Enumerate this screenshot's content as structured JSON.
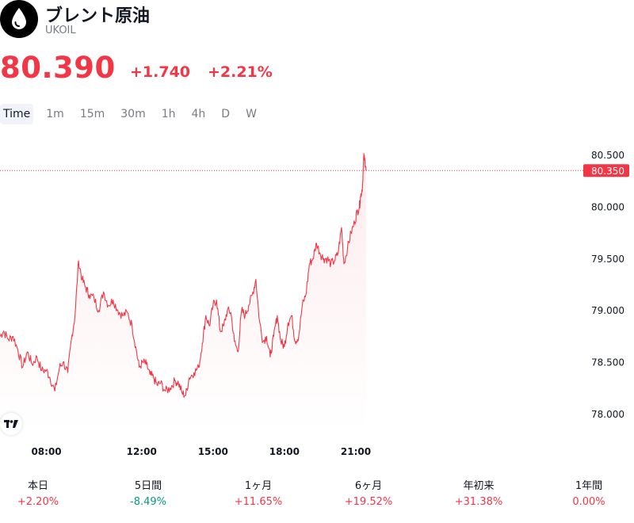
{
  "header": {
    "title": "ブレント原油",
    "ticker": "UKOIL",
    "icon": "oil-drop-icon"
  },
  "quote": {
    "price": "80.390",
    "change": "+1.740",
    "change_pct": "+2.21%"
  },
  "tabs": [
    {
      "label": "Time",
      "active": true
    },
    {
      "label": "1m",
      "active": false
    },
    {
      "label": "15m",
      "active": false
    },
    {
      "label": "30m",
      "active": false
    },
    {
      "label": "1h",
      "active": false
    },
    {
      "label": "4h",
      "active": false
    },
    {
      "label": "D",
      "active": false
    },
    {
      "label": "W",
      "active": false
    }
  ],
  "chart_data": {
    "type": "area",
    "ylim": [
      77.85,
      80.62
    ],
    "y_ticks": [
      "80.500",
      "80.000",
      "79.500",
      "79.000",
      "78.500",
      "78.000"
    ],
    "y_tick_values": [
      80.5,
      80.0,
      79.5,
      79.0,
      78.5,
      78.0
    ],
    "x_ticks": [
      "08:00",
      "12:00",
      "15:00",
      "18:00",
      "21:00"
    ],
    "x_tick_hours": [
      8,
      12,
      15,
      18,
      21
    ],
    "x_range_hours": [
      6.05,
      21.2
    ],
    "last_price_label": "80.350",
    "last_price": 80.35,
    "line_color": "#f23645",
    "series": [
      {
        "points": [
          [
            6.05,
            78.75
          ],
          [
            6.2,
            78.8
          ],
          [
            6.4,
            78.72
          ],
          [
            6.6,
            78.75
          ],
          [
            6.8,
            78.62
          ],
          [
            7.0,
            78.45
          ],
          [
            7.2,
            78.6
          ],
          [
            7.4,
            78.48
          ],
          [
            7.6,
            78.55
          ],
          [
            7.8,
            78.42
          ],
          [
            8.0,
            78.42
          ],
          [
            8.15,
            78.35
          ],
          [
            8.35,
            78.22
          ],
          [
            8.55,
            78.45
          ],
          [
            8.7,
            78.5
          ],
          [
            8.9,
            78.4
          ],
          [
            9.05,
            78.72
          ],
          [
            9.2,
            78.95
          ],
          [
            9.35,
            79.48
          ],
          [
            9.5,
            79.3
          ],
          [
            9.65,
            79.22
          ],
          [
            9.8,
            79.15
          ],
          [
            10.0,
            79.12
          ],
          [
            10.2,
            79.0
          ],
          [
            10.4,
            79.18
          ],
          [
            10.6,
            79.05
          ],
          [
            10.8,
            79.1
          ],
          [
            11.0,
            79.0
          ],
          [
            11.2,
            78.95
          ],
          [
            11.4,
            78.98
          ],
          [
            11.6,
            78.85
          ],
          [
            11.75,
            78.65
          ],
          [
            11.9,
            78.45
          ],
          [
            12.05,
            78.5
          ],
          [
            12.2,
            78.48
          ],
          [
            12.35,
            78.38
          ],
          [
            12.5,
            78.35
          ],
          [
            12.65,
            78.28
          ],
          [
            12.8,
            78.3
          ],
          [
            13.0,
            78.22
          ],
          [
            13.2,
            78.25
          ],
          [
            13.4,
            78.32
          ],
          [
            13.55,
            78.3
          ],
          [
            13.7,
            78.2
          ],
          [
            13.85,
            78.18
          ],
          [
            14.0,
            78.35
          ],
          [
            14.2,
            78.4
          ],
          [
            14.4,
            78.45
          ],
          [
            14.55,
            78.68
          ],
          [
            14.7,
            78.95
          ],
          [
            14.85,
            78.85
          ],
          [
            15.0,
            79.05
          ],
          [
            15.15,
            79.1
          ],
          [
            15.3,
            78.8
          ],
          [
            15.45,
            78.85
          ],
          [
            15.6,
            79.0
          ],
          [
            15.75,
            78.98
          ],
          [
            15.9,
            78.7
          ],
          [
            16.05,
            78.6
          ],
          [
            16.2,
            79.0
          ],
          [
            16.35,
            78.95
          ],
          [
            16.5,
            79.05
          ],
          [
            16.65,
            79.15
          ],
          [
            16.8,
            79.3
          ],
          [
            16.95,
            78.9
          ],
          [
            17.1,
            78.7
          ],
          [
            17.25,
            78.75
          ],
          [
            17.4,
            78.55
          ],
          [
            17.55,
            78.75
          ],
          [
            17.7,
            78.95
          ],
          [
            17.85,
            78.7
          ],
          [
            18.0,
            78.65
          ],
          [
            18.15,
            78.88
          ],
          [
            18.3,
            78.95
          ],
          [
            18.45,
            78.7
          ],
          [
            18.6,
            78.75
          ],
          [
            18.75,
            79.05
          ],
          [
            18.9,
            79.15
          ],
          [
            19.05,
            79.45
          ],
          [
            19.2,
            79.5
          ],
          [
            19.35,
            79.65
          ],
          [
            19.5,
            79.55
          ],
          [
            19.65,
            79.5
          ],
          [
            19.8,
            79.5
          ],
          [
            19.95,
            79.45
          ],
          [
            20.1,
            79.48
          ],
          [
            20.25,
            79.55
          ],
          [
            20.4,
            79.8
          ],
          [
            20.5,
            79.45
          ],
          [
            20.65,
            79.6
          ],
          [
            20.8,
            79.75
          ],
          [
            20.95,
            79.85
          ],
          [
            21.05,
            79.95
          ],
          [
            21.15,
            80.0
          ],
          [
            21.2,
            80.1
          ],
          [
            21.28,
            80.2
          ],
          [
            21.33,
            80.48
          ],
          [
            21.38,
            80.45
          ],
          [
            21.43,
            80.35
          ]
        ]
      }
    ]
  },
  "performance": [
    {
      "label": "本日",
      "value": "+2.20%",
      "trend": "up"
    },
    {
      "label": "5日間",
      "value": "-8.49%",
      "trend": "down"
    },
    {
      "label": "1ヶ月",
      "value": "+11.65%",
      "trend": "up"
    },
    {
      "label": "6ヶ月",
      "value": "+19.52%",
      "trend": "up"
    },
    {
      "label": "年初来",
      "value": "+31.38%",
      "trend": "up"
    },
    {
      "label": "1年間",
      "value": "0.00%",
      "trend": "up"
    }
  ],
  "colors": {
    "up": "#f23645",
    "down": "#089981",
    "muted": "#787b86"
  }
}
